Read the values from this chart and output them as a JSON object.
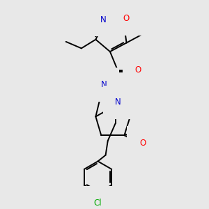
{
  "bg_color": "#e8e8e8",
  "atom_colors": {
    "N": "#0000cc",
    "O": "#ff0000",
    "Cl": "#00aa00",
    "H": "#6699aa"
  },
  "bond_color": "#000000",
  "bond_width": 1.4,
  "fig_size": [
    3.0,
    3.0
  ],
  "dpi": 100,
  "xlim": [
    0.5,
    7.5
  ],
  "ylim": [
    0.2,
    9.5
  ]
}
